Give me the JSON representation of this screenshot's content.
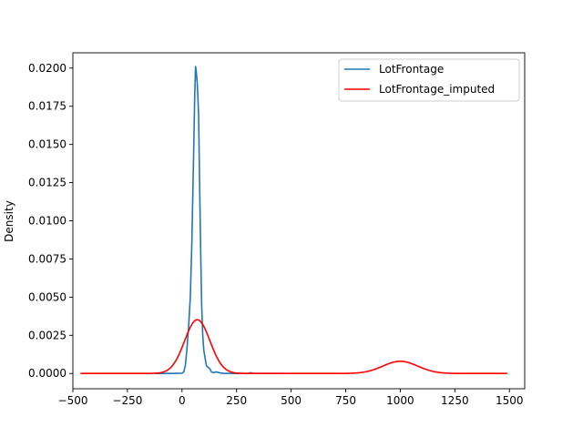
{
  "chart_data": {
    "type": "line",
    "title": "",
    "xlabel": "",
    "ylabel": "Density",
    "xlim": [
      -500,
      1570
    ],
    "ylim": [
      -0.001,
      0.021
    ],
    "xticks": [
      -500,
      -250,
      0,
      250,
      500,
      750,
      1000,
      1250,
      1500
    ],
    "xtick_labels": [
      "−500",
      "−250",
      "0",
      "250",
      "500",
      "750",
      "1000",
      "1250",
      "1500"
    ],
    "yticks": [
      0.0,
      0.0025,
      0.005,
      0.0075,
      0.01,
      0.0125,
      0.015,
      0.0175,
      0.02
    ],
    "ytick_labels": [
      "0.0000",
      "0.0025",
      "0.0050",
      "0.0075",
      "0.0100",
      "0.0125",
      "0.0150",
      "0.0175",
      "0.0200"
    ],
    "grid": false,
    "legend": {
      "position": "top-right"
    },
    "series": [
      {
        "name": "LotFrontage",
        "color": "#1f77b4",
        "x": [
          -125,
          -50,
          0,
          8,
          15,
          22,
          30,
          38,
          45,
          52,
          58,
          62,
          65,
          70,
          76,
          80,
          85,
          90,
          95,
          100,
          107,
          112,
          120,
          128,
          135,
          145,
          155,
          165,
          175,
          190,
          205,
          220,
          250,
          300,
          313,
          330,
          360,
          400,
          461
        ],
        "y": [
          0,
          0,
          2e-05,
          0.0001,
          0.0005,
          0.0015,
          0.003,
          0.005,
          0.0085,
          0.0135,
          0.018,
          0.0201,
          0.0198,
          0.019,
          0.017,
          0.013,
          0.0085,
          0.0045,
          0.0025,
          0.0015,
          0.0009,
          0.0005,
          0.0004,
          0.0003,
          0.0001,
          5e-05,
          0.0001,
          8e-05,
          3e-05,
          1e-05,
          0.0,
          0.0,
          0.0,
          0.0,
          5e-05,
          0.0,
          0.0,
          0.0,
          0.0
        ]
      },
      {
        "name": "LotFrontage_imputed",
        "color": "#ff0000",
        "components": [
          {
            "mean": 70,
            "sd": 58,
            "weight": 0.5123
          },
          {
            "mean": 1000,
            "sd": 80,
            "weight": 0.1601
          }
        ],
        "xrange": [
          -465,
          1490
        ]
      }
    ]
  }
}
